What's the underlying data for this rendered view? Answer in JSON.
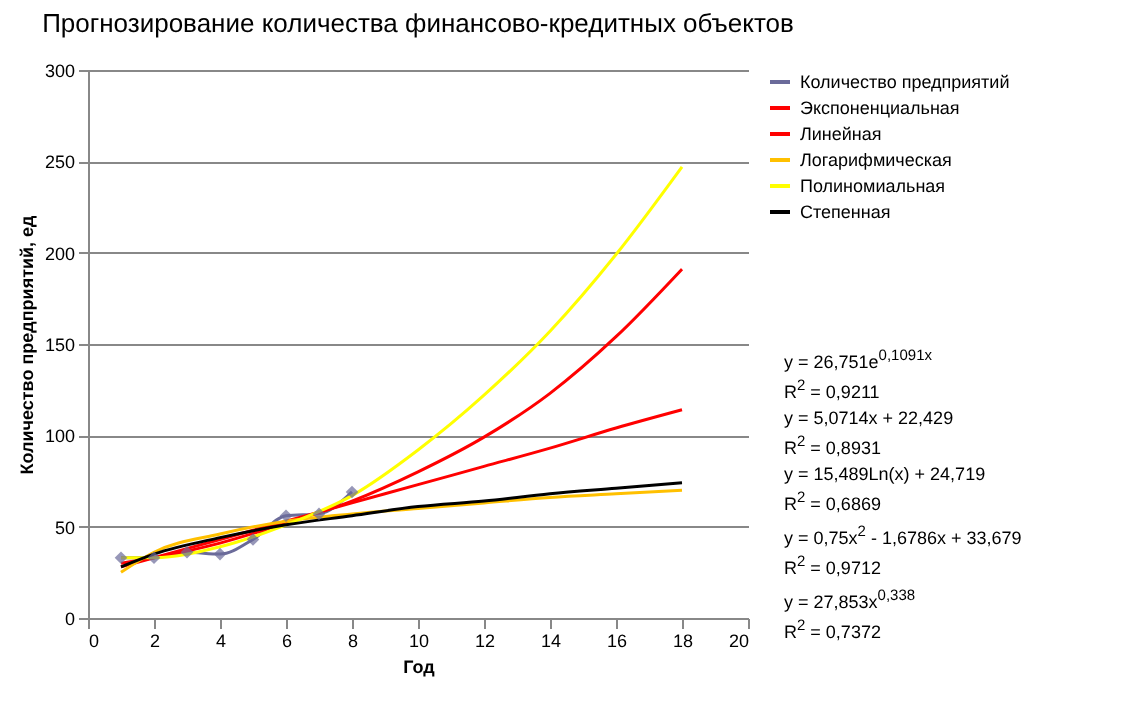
{
  "chart_data": {
    "type": "line",
    "title": "Прогнозирование количества финансово-кредитных объектов",
    "xlabel": "Год",
    "ylabel": "Количество предприятий, ед",
    "xlim": [
      0,
      20
    ],
    "xticks": [
      0,
      2,
      4,
      6,
      8,
      10,
      12,
      14,
      16,
      18,
      20
    ],
    "ylim": [
      0,
      300
    ],
    "yticks": [
      0,
      50,
      100,
      150,
      200,
      250,
      300
    ],
    "grid": "y",
    "legend": "right",
    "line_style": "solid",
    "series": [
      {
        "name": "Количество предприятий",
        "color": "#6b6b9a",
        "marker": "diamond",
        "x": [
          1,
          2,
          3,
          4,
          5,
          6,
          7,
          8
        ],
        "values": [
          33,
          33,
          36,
          35,
          43,
          56,
          57,
          69
        ]
      },
      {
        "name": "Экспоненциальная",
        "color": "#ff0000",
        "marker": "none",
        "x": [
          1,
          2,
          4,
          6,
          8,
          10,
          12,
          14,
          16,
          18
        ],
        "values": [
          30,
          33,
          41,
          52,
          64,
          80,
          99,
          123,
          154,
          191
        ]
      },
      {
        "name": "Линейная",
        "color": "#ff0000",
        "marker": "none",
        "x": [
          1,
          2,
          4,
          6,
          8,
          10,
          12,
          14,
          16,
          18
        ],
        "values": [
          28,
          33,
          43,
          53,
          63,
          73,
          83,
          93,
          104,
          114
        ]
      },
      {
        "name": "Логарифмическая",
        "color": "#ffc000",
        "marker": "none",
        "x": [
          1,
          2,
          4,
          6,
          8,
          10,
          12,
          14,
          16,
          18
        ],
        "values": [
          25,
          36,
          46,
          53,
          57,
          60,
          63,
          66,
          68,
          70
        ]
      },
      {
        "name": "Полиномиальная",
        "color": "#ffff00",
        "marker": "none",
        "x": [
          1,
          2,
          4,
          6,
          8,
          10,
          12,
          14,
          16,
          18
        ],
        "values": [
          33,
          33,
          39,
          51,
          67,
          92,
          122,
          157,
          199,
          247
        ]
      },
      {
        "name": "Степенная",
        "color": "#000000",
        "marker": "none",
        "x": [
          1,
          2,
          4,
          6,
          8,
          10,
          12,
          14,
          16,
          18
        ],
        "values": [
          28,
          35,
          44,
          51,
          56,
          61,
          64,
          68,
          71,
          74
        ]
      }
    ],
    "annotations": [
      "y = 26,751e$^{0,1091x}$",
      "R$^{2}$ = 0,9211",
      "y = 5,0714x + 22,429",
      "R$^{2}$ = 0,8931",
      "y = 15,489Ln(x) + 24,719",
      "R$^{2}$ = 0,6869",
      "y = 0,75x$^{2}$ - 1,6786x + 33,679",
      "R$^{2}$ = 0,9712",
      "y = 27,853x$^{0,338}$",
      "R$^{2}$ = 0,7372"
    ]
  }
}
